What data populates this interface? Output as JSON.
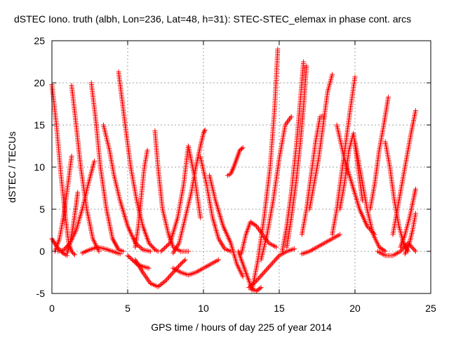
{
  "chart_data": {
    "type": "scatter",
    "title": "dSTEC Iono. truth (albh, Lon=236, Lat=48, h=31): STEC-STEC_elemax in phase cont. arcs",
    "xlabel": "GPS time / hours of day 225 of year 2014",
    "ylabel": "dSTEC  / TECUs",
    "xlim": [
      0,
      25
    ],
    "ylim": [
      -5,
      25
    ],
    "xticks": [
      0,
      5,
      10,
      15,
      20,
      25
    ],
    "yticks": [
      -5,
      0,
      5,
      10,
      15,
      20,
      25
    ],
    "grid": true,
    "marker": "plus",
    "color": "#ff0000",
    "series": [
      {
        "x": [
          0.0,
          0.3,
          0.6,
          0.9,
          1.1,
          1.3,
          1.5
        ],
        "y": [
          19.8,
          15.0,
          9.0,
          4.0,
          1.0,
          0.0,
          -0.4
        ]
      },
      {
        "x": [
          0.0,
          0.3,
          0.6,
          0.8,
          1.0
        ],
        "y": [
          1.5,
          0.6,
          0.0,
          -0.3,
          -0.5
        ]
      },
      {
        "x": [
          0.2,
          0.5,
          0.8,
          1.1,
          1.3
        ],
        "y": [
          0.0,
          1.5,
          4.5,
          8.5,
          11.3
        ]
      },
      {
        "x": [
          0.4,
          0.8,
          1.2,
          1.6,
          2.0,
          2.4,
          2.8
        ],
        "y": [
          0.0,
          0.2,
          1.0,
          2.5,
          5.0,
          8.0,
          10.7
        ]
      },
      {
        "x": [
          1.3,
          1.6,
          1.9,
          2.3,
          2.7,
          3.1
        ],
        "y": [
          19.7,
          15.0,
          10.0,
          5.0,
          1.5,
          0.0
        ]
      },
      {
        "x": [
          1.0,
          1.2,
          1.4,
          1.6,
          1.7
        ],
        "y": [
          -0.2,
          1.0,
          3.0,
          5.5,
          7.0
        ]
      },
      {
        "x": [
          2.0,
          2.5,
          3.0,
          3.5,
          4.0,
          4.5
        ],
        "y": [
          -0.2,
          0.2,
          0.5,
          0.3,
          0.0,
          -0.3
        ]
      },
      {
        "x": [
          2.6,
          2.9,
          3.2,
          3.6,
          4.0,
          4.4,
          4.7
        ],
        "y": [
          20.0,
          15.5,
          10.0,
          5.0,
          1.5,
          0.2,
          0.0
        ]
      },
      {
        "x": [
          3.4,
          3.8,
          4.1,
          4.5,
          5.0,
          5.5,
          6.0,
          6.5
        ],
        "y": [
          15.0,
          12.0,
          9.0,
          6.0,
          3.0,
          1.0,
          0.2,
          0.0
        ]
      },
      {
        "x": [
          4.4,
          4.8,
          5.2,
          5.6,
          6.0,
          6.4,
          6.8,
          7.0
        ],
        "y": [
          21.3,
          15.5,
          10.0,
          6.0,
          3.0,
          1.0,
          0.2,
          0.0
        ]
      },
      {
        "x": [
          5.5,
          5.7,
          5.9,
          6.1,
          6.3
        ],
        "y": [
          0.5,
          3.0,
          6.5,
          10.0,
          12.0
        ]
      },
      {
        "x": [
          5.0,
          5.3,
          5.6,
          6.0,
          6.4
        ],
        "y": [
          -0.5,
          -1.0,
          -1.5,
          -1.8,
          -2.0
        ]
      },
      {
        "x": [
          5.5,
          6.0,
          6.5,
          7.0,
          7.5,
          8.0,
          8.5,
          8.8
        ],
        "y": [
          -1.0,
          -2.5,
          -3.8,
          -4.2,
          -3.5,
          -2.5,
          -1.5,
          -1.0
        ]
      },
      {
        "x": [
          6.8,
          7.0,
          7.3,
          7.7,
          8.0,
          8.5,
          9.0
        ],
        "y": [
          14.3,
          10.0,
          5.0,
          2.0,
          0.5,
          0.0,
          0.0
        ]
      },
      {
        "x": [
          7.2,
          7.8,
          8.3,
          8.7,
          9.0,
          9.4,
          9.8
        ],
        "y": [
          0.0,
          1.0,
          4.0,
          8.0,
          12.5,
          9.0,
          4.0
        ]
      },
      {
        "x": [
          8.0,
          8.4,
          8.8,
          9.2,
          9.5,
          9.8,
          10.0,
          10.1
        ],
        "y": [
          -0.2,
          1.0,
          4.0,
          7.0,
          10.0,
          12.5,
          14.0,
          14.4
        ]
      },
      {
        "x": [
          8.0,
          8.5,
          9.0,
          9.5,
          10.0,
          10.5,
          11.0
        ],
        "y": [
          -2.0,
          -2.5,
          -2.8,
          -2.5,
          -2.0,
          -1.5,
          -1.0
        ]
      },
      {
        "x": [
          9.8,
          10.2,
          10.6,
          11.0,
          11.4,
          11.8
        ],
        "y": [
          11.2,
          8.0,
          4.0,
          1.5,
          0.3,
          0.0
        ]
      },
      {
        "x": [
          10.4,
          10.8,
          11.3,
          11.8,
          12.2,
          12.6
        ],
        "y": [
          9.0,
          6.0,
          3.0,
          1.0,
          -1.5,
          -3.0
        ]
      },
      {
        "x": [
          11.6,
          11.8,
          12.0,
          12.2,
          12.4,
          12.6
        ],
        "y": [
          9.0,
          9.2,
          10.0,
          11.0,
          12.0,
          12.3
        ]
      },
      {
        "x": [
          12.3,
          12.6,
          12.9,
          13.2,
          13.5,
          13.8
        ],
        "y": [
          0.0,
          -1.5,
          -3.0,
          -4.5,
          -4.7,
          -4.3
        ]
      },
      {
        "x": [
          12.5,
          12.8,
          13.1,
          13.5,
          13.9,
          14.3,
          14.8
        ],
        "y": [
          -0.3,
          2.0,
          3.5,
          3.0,
          2.0,
          1.0,
          0.5
        ]
      },
      {
        "x": [
          13.0,
          13.5,
          14.0,
          14.5,
          15.0,
          15.5,
          16.0
        ],
        "y": [
          -4.3,
          -3.5,
          -2.5,
          -1.5,
          -0.5,
          0.0,
          0.3
        ]
      },
      {
        "x": [
          13.2,
          13.6,
          14.0,
          14.4,
          14.7,
          14.9
        ],
        "y": [
          -4.6,
          -1.0,
          4.0,
          10.0,
          17.0,
          24.0
        ]
      },
      {
        "x": [
          13.8,
          14.2,
          14.6,
          15.0,
          15.4,
          15.8
        ],
        "y": [
          -1.0,
          2.0,
          6.0,
          11.0,
          15.0,
          16.0
        ]
      },
      {
        "x": [
          15.2,
          15.5,
          15.8,
          16.1,
          16.4,
          16.6
        ],
        "y": [
          0.0,
          3.0,
          7.0,
          12.0,
          18.0,
          22.5
        ]
      },
      {
        "x": [
          15.5,
          15.8,
          16.1,
          16.4,
          16.6,
          16.8
        ],
        "y": [
          0.5,
          4.0,
          8.0,
          13.0,
          17.0,
          22.0
        ]
      },
      {
        "x": [
          16.5,
          16.8,
          17.1,
          17.4,
          17.7,
          18.0
        ],
        "y": [
          2.0,
          5.0,
          9.0,
          13.0,
          16.0,
          16.0
        ]
      },
      {
        "x": [
          17.0,
          17.3,
          17.6,
          17.9,
          18.2,
          18.5
        ],
        "y": [
          5.0,
          8.0,
          11.0,
          15.0,
          19.0,
          21.0
        ]
      },
      {
        "x": [
          16.5,
          17.0,
          17.5,
          18.0,
          18.5,
          19.0
        ],
        "y": [
          -0.3,
          0.0,
          0.5,
          1.0,
          1.5,
          2.0
        ]
      },
      {
        "x": [
          18.5,
          18.8,
          19.1,
          19.4,
          19.7,
          20.0
        ],
        "y": [
          2.0,
          5.0,
          9.0,
          13.0,
          17.0,
          20.7
        ]
      },
      {
        "x": [
          19.0,
          19.3,
          19.6,
          19.9,
          20.2,
          20.5
        ],
        "y": [
          5.0,
          8.0,
          12.0,
          14.0,
          10.0,
          6.0
        ]
      },
      {
        "x": [
          18.8,
          19.3,
          19.8,
          20.3,
          20.8,
          21.3
        ],
        "y": [
          15.0,
          11.0,
          8.0,
          5.0,
          3.0,
          2.0
        ]
      },
      {
        "x": [
          20.0,
          20.4,
          20.8,
          21.2,
          21.6,
          22.0
        ],
        "y": [
          13.0,
          9.0,
          5.0,
          2.0,
          0.5,
          0.0
        ]
      },
      {
        "x": [
          21.0,
          21.3,
          21.6,
          21.9,
          22.2
        ],
        "y": [
          5.0,
          8.0,
          12.0,
          15.0,
          18.3
        ]
      },
      {
        "x": [
          21.5,
          22.0,
          22.5,
          23.0,
          23.5,
          24.0
        ],
        "y": [
          0.0,
          -0.5,
          -0.5,
          0.0,
          1.0,
          0.0
        ]
      },
      {
        "x": [
          22.0,
          22.3,
          22.6,
          22.9,
          23.2,
          23.5
        ],
        "y": [
          13.0,
          10.0,
          6.0,
          3.0,
          1.0,
          0.0
        ]
      },
      {
        "x": [
          22.5,
          22.8,
          23.1,
          23.4,
          23.7,
          24.0
        ],
        "y": [
          2.0,
          5.0,
          8.0,
          11.0,
          14.0,
          16.7
        ]
      },
      {
        "x": [
          23.0,
          23.3,
          23.6,
          23.9,
          24.0
        ],
        "y": [
          0.5,
          2.0,
          4.0,
          6.5,
          7.4
        ]
      },
      {
        "x": [
          23.3,
          23.6,
          23.8,
          24.0
        ],
        "y": [
          -0.3,
          1.0,
          2.5,
          4.5
        ]
      }
    ]
  }
}
